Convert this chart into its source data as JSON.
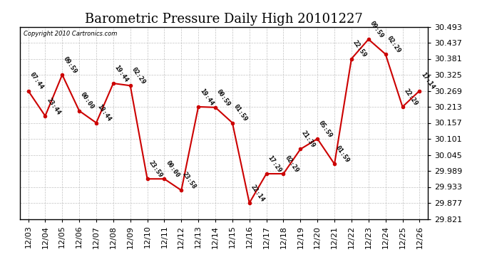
{
  "title": "Barometric Pressure Daily High 20101227",
  "copyright": "Copyright 2010 Cartronics.com",
  "x_labels": [
    "12/03",
    "12/04",
    "12/05",
    "12/06",
    "12/07",
    "12/08",
    "12/09",
    "12/10",
    "12/11",
    "12/12",
    "12/13",
    "12/14",
    "12/15",
    "12/16",
    "12/17",
    "12/18",
    "12/19",
    "12/20",
    "12/21",
    "12/22",
    "12/23",
    "12/24",
    "12/25",
    "12/26"
  ],
  "y_values": [
    30.269,
    30.181,
    30.325,
    30.199,
    30.157,
    30.295,
    30.287,
    29.961,
    29.961,
    29.921,
    30.213,
    30.211,
    30.157,
    29.877,
    29.979,
    29.979,
    30.065,
    30.101,
    30.013,
    30.381,
    30.449,
    30.397,
    30.213,
    30.269
  ],
  "point_labels": [
    "07:44",
    "23:44",
    "09:59",
    "00:00",
    "18:44",
    "19:44",
    "02:29",
    "23:59",
    "00:00",
    "23:58",
    "19:44",
    "00:59",
    "01:59",
    "22:14",
    "17:29",
    "02:29",
    "21:39",
    "05:59",
    "01:59",
    "22:59",
    "09:59",
    "02:29",
    "22:29",
    "17:14"
  ],
  "ylim_min": 29.821,
  "ylim_max": 30.493,
  "yticks": [
    29.821,
    29.877,
    29.933,
    29.989,
    30.045,
    30.101,
    30.157,
    30.213,
    30.269,
    30.325,
    30.381,
    30.437,
    30.493
  ],
  "line_color": "#cc0000",
  "marker_color": "#cc0000",
  "bg_color": "#ffffff",
  "grid_color": "#bbbbbb",
  "title_fontsize": 13,
  "tick_fontsize": 8,
  "point_label_fontsize": 6.5
}
